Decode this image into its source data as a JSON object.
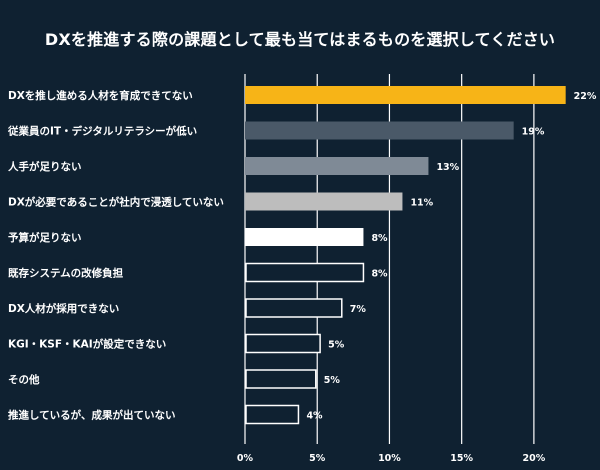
{
  "chart_data": {
    "type": "bar",
    "orientation": "horizontal",
    "title": "DXを推進する際の課題として最も当てはまるものを選択してください",
    "categories": [
      "DXを推し進める人材を育成できてない",
      "従業員のIT・デジタルリテラシーが低い",
      "人手が足りない",
      "DXが必要であることが社内で浸透していない",
      "予算が足りない",
      "既存システムの改修負担",
      "DX人材が採用できない",
      "KGI・KSF・KAIが設定できない",
      "その他",
      "推進しているが、成果が出ていない"
    ],
    "values": [
      22.2,
      18.6,
      12.7,
      10.9,
      8.2,
      8.2,
      6.7,
      5.2,
      4.9,
      3.7
    ],
    "value_labels": [
      "22%",
      "19%",
      "13%",
      "11%",
      "8%",
      "8%",
      "7%",
      "5%",
      "5%",
      "4%"
    ],
    "bar_styles": [
      "highlight",
      "dark-gray",
      "mid-gray",
      "light-gray",
      "white",
      "outline",
      "outline",
      "outline",
      "outline",
      "outline"
    ],
    "xlim": [
      0,
      22.5
    ],
    "xticks": [
      0,
      5,
      10,
      15,
      20
    ],
    "xtick_labels": [
      "0%",
      "5%",
      "10%",
      "15%",
      "20%"
    ],
    "grid": true,
    "colors": {
      "background": "#0f2131",
      "highlight": "#f7b417",
      "dark-gray": "#4a5968",
      "mid-gray": "#7f8a96",
      "light-gray": "#bdbdbd",
      "white": "#ffffff",
      "outline_stroke": "#ffffff",
      "gridline": "#ffffff",
      "text": "#ffffff"
    }
  }
}
